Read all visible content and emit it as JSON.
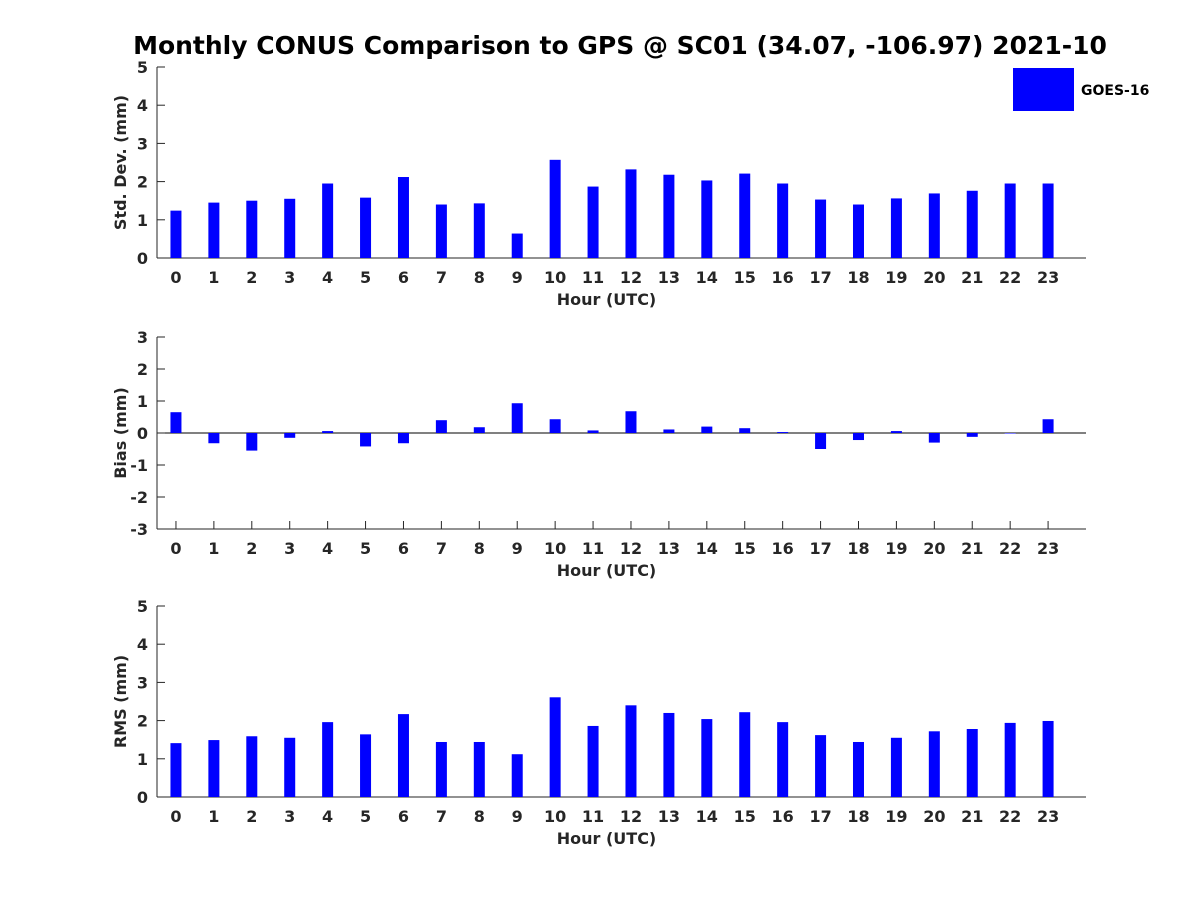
{
  "title": "Monthly CONUS Comparison to GPS @ SC01 (34.07, -106.97) 2021-10",
  "legend": {
    "label": "GOES-16",
    "color": "#0000ff"
  },
  "chart_data": [
    {
      "type": "bar",
      "ylabel": "Std. Dev. (mm)",
      "xlabel": "Hour (UTC)",
      "ylim": [
        0,
        5
      ],
      "yticks": [
        0,
        1,
        2,
        3,
        4,
        5
      ],
      "categories": [
        "0",
        "1",
        "2",
        "3",
        "4",
        "5",
        "6",
        "7",
        "8",
        "9",
        "10",
        "11",
        "12",
        "13",
        "14",
        "15",
        "16",
        "17",
        "18",
        "19",
        "20",
        "21",
        "22",
        "23"
      ],
      "series": [
        {
          "name": "GOES-16",
          "color": "#0000ff",
          "values": [
            1.24,
            1.45,
            1.5,
            1.55,
            1.95,
            1.58,
            2.12,
            1.4,
            1.43,
            0.64,
            2.57,
            1.87,
            2.32,
            2.18,
            2.03,
            2.21,
            1.95,
            1.53,
            1.4,
            1.56,
            1.69,
            1.76,
            1.95,
            1.95
          ]
        }
      ],
      "legend": "top-right",
      "grid": false
    },
    {
      "type": "bar",
      "ylabel": "Bias (mm)",
      "xlabel": "Hour (UTC)",
      "ylim": [
        -3,
        3
      ],
      "yticks": [
        -3,
        -2,
        -1,
        0,
        1,
        2,
        3
      ],
      "categories": [
        "0",
        "1",
        "2",
        "3",
        "4",
        "5",
        "6",
        "7",
        "8",
        "9",
        "10",
        "11",
        "12",
        "13",
        "14",
        "15",
        "16",
        "17",
        "18",
        "19",
        "20",
        "21",
        "22",
        "23"
      ],
      "series": [
        {
          "name": "GOES-16",
          "color": "#0000ff",
          "values": [
            0.65,
            -0.32,
            -0.55,
            -0.15,
            0.06,
            -0.42,
            -0.32,
            0.4,
            0.18,
            0.93,
            0.43,
            0.08,
            0.68,
            0.11,
            0.2,
            0.15,
            0.03,
            -0.5,
            -0.22,
            0.06,
            -0.3,
            -0.12,
            -0.01,
            0.43
          ]
        }
      ],
      "grid": false
    },
    {
      "type": "bar",
      "ylabel": "RMS (mm)",
      "xlabel": "Hour (UTC)",
      "ylim": [
        0,
        5
      ],
      "yticks": [
        0,
        1,
        2,
        3,
        4,
        5
      ],
      "categories": [
        "0",
        "1",
        "2",
        "3",
        "4",
        "5",
        "6",
        "7",
        "8",
        "9",
        "10",
        "11",
        "12",
        "13",
        "14",
        "15",
        "16",
        "17",
        "18",
        "19",
        "20",
        "21",
        "22",
        "23"
      ],
      "series": [
        {
          "name": "GOES-16",
          "color": "#0000ff",
          "values": [
            1.41,
            1.49,
            1.59,
            1.55,
            1.96,
            1.64,
            2.17,
            1.44,
            1.44,
            1.12,
            2.61,
            1.86,
            2.4,
            2.2,
            2.04,
            2.22,
            1.96,
            1.62,
            1.44,
            1.55,
            1.72,
            1.78,
            1.94,
            1.99
          ]
        }
      ],
      "grid": false
    }
  ]
}
